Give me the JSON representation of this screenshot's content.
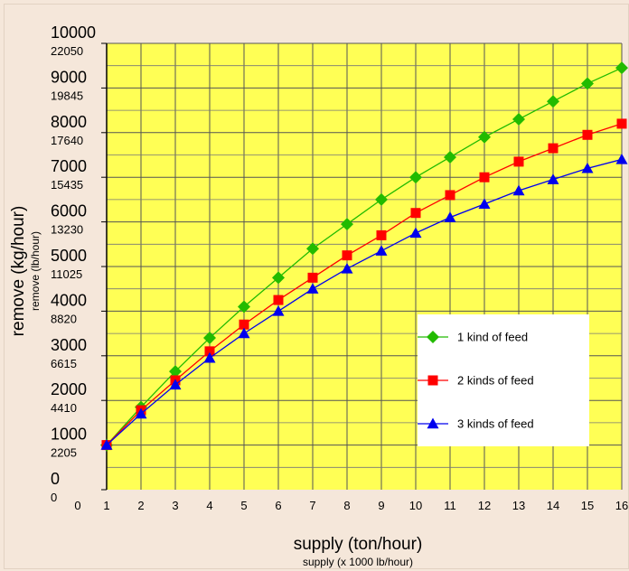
{
  "chart_data": {
    "type": "line",
    "x": [
      1,
      2,
      3,
      4,
      5,
      6,
      7,
      8,
      9,
      10,
      11,
      12,
      13,
      14,
      15,
      16
    ],
    "xlabel": "supply  (ton/hour)",
    "xlabel_secondary": "supply (x 1000 lb/hour)",
    "ylabel": "remove  (kg/hour)",
    "ylabel_secondary": "remove (lb/hour)",
    "xlim": [
      0,
      16
    ],
    "ylim": [
      0,
      10000
    ],
    "y_ticks": [
      0,
      1000,
      2000,
      3000,
      4000,
      5000,
      6000,
      7000,
      8000,
      9000,
      10000
    ],
    "y_ticks_secondary": [
      "0",
      "2205",
      "4410",
      "6615",
      "8820",
      "11025",
      "13230",
      "15435",
      "17640",
      "19845",
      "22050"
    ],
    "x_ticks": [
      0,
      1,
      2,
      3,
      4,
      5,
      6,
      7,
      8,
      9,
      10,
      11,
      12,
      13,
      14,
      15,
      16
    ],
    "grid": true,
    "legend_placement": "bottom-right",
    "series": [
      {
        "name": "1 kind of feed",
        "color": "#22bb00",
        "marker": "diamond",
        "values": [
          1000,
          1850,
          2650,
          3400,
          4100,
          4750,
          5400,
          5950,
          6500,
          7000,
          7450,
          7900,
          8300,
          8700,
          9100,
          9450
        ]
      },
      {
        "name": "2 kinds of feed",
        "color": "#ff0000",
        "marker": "square",
        "values": [
          1000,
          1780,
          2450,
          3100,
          3700,
          4250,
          4750,
          5250,
          5700,
          6200,
          6600,
          7000,
          7350,
          7650,
          7950,
          8200
        ]
      },
      {
        "name": "3 kinds of feed",
        "color": "#0000ee",
        "marker": "triangle",
        "values": [
          1000,
          1700,
          2350,
          2950,
          3500,
          4000,
          4500,
          4950,
          5350,
          5750,
          6100,
          6400,
          6700,
          6950,
          7200,
          7400
        ]
      }
    ]
  }
}
